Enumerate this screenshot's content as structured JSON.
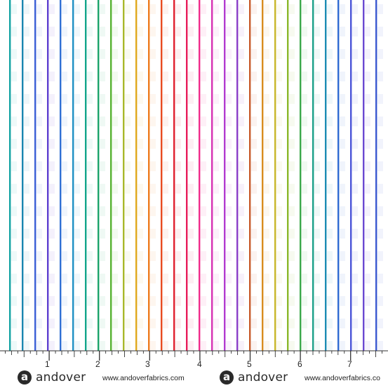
{
  "swatch": {
    "background": "#ffffff",
    "stripe_colors": [
      "#13a3a3",
      "#1a86b0",
      "#3b5fd6",
      "#5d3fcf",
      "#2f6fd4",
      "#1e8fc4",
      "#12a58a",
      "#1aa36a",
      "#56b230",
      "#a8b82a",
      "#e0a81c",
      "#ee7a1c",
      "#e84a1f",
      "#e0202e",
      "#e81c5a",
      "#f02a8a",
      "#d632b4",
      "#b23ad0",
      "#8a3ec8",
      "#c85a2a",
      "#d88c1e",
      "#c8b62a",
      "#8ab82a",
      "#3aa84a",
      "#1aa088",
      "#1c8cb4",
      "#2f6ad2",
      "#4a54d8",
      "#6a48d2",
      "#3a58d0"
    ]
  },
  "ruler": {
    "numbers": [
      "1",
      "2",
      "3",
      "4",
      "5",
      "6",
      "7"
    ]
  },
  "branding": [
    {
      "logo_letter": "a",
      "name": "andover",
      "url": "www.andoverfabrics.com"
    },
    {
      "logo_letter": "a",
      "name": "andover",
      "url": "www.andoverfabrics.co"
    }
  ]
}
